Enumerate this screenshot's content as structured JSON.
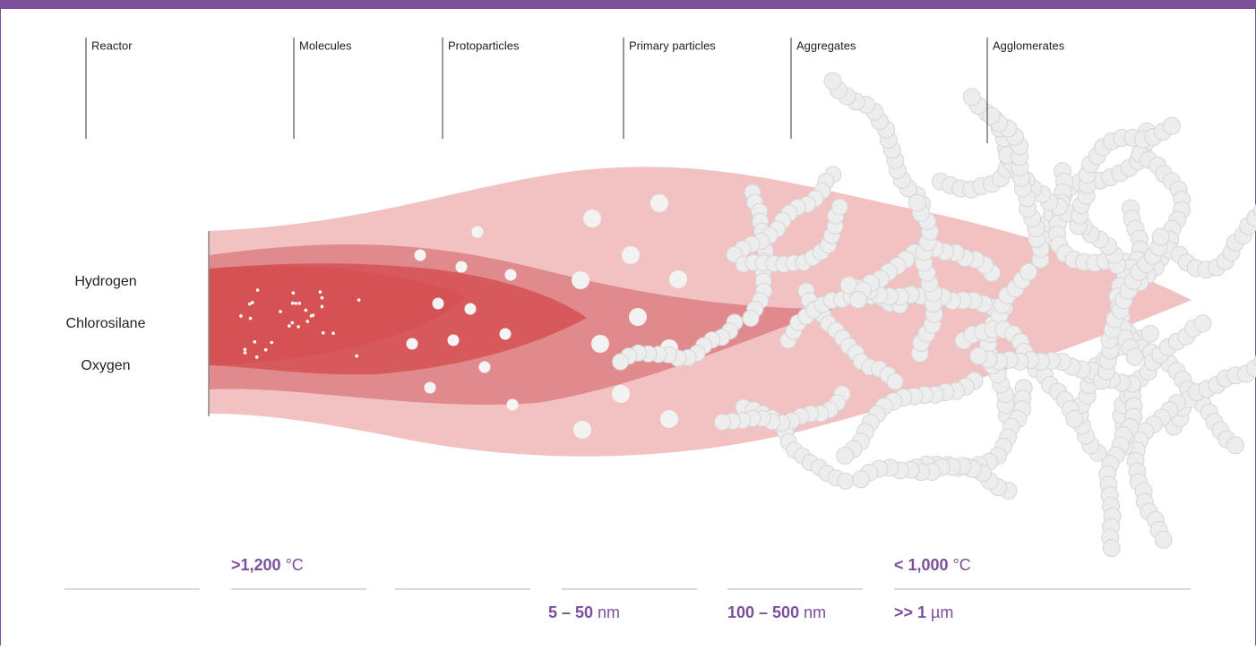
{
  "stages": [
    {
      "label": "Reactor"
    },
    {
      "label": "Molecules"
    },
    {
      "label": "Protoparticles"
    },
    {
      "label": "Primary particles"
    },
    {
      "label": "Aggregates"
    },
    {
      "label": "Agglomerates"
    }
  ],
  "inputs": [
    "Hydrogen",
    "Chlorosilane",
    "Oxygen"
  ],
  "temperatures": [
    {
      "value": ">1,200",
      "unit": "°C"
    },
    {
      "value": "< 1,000",
      "unit": "°C"
    }
  ],
  "sizes": [
    {
      "value": "5 – 50",
      "unit": "nm"
    },
    {
      "value": "100 – 500",
      "unit": "nm"
    },
    {
      "value": ">> 1",
      "unit": "µm"
    }
  ]
}
